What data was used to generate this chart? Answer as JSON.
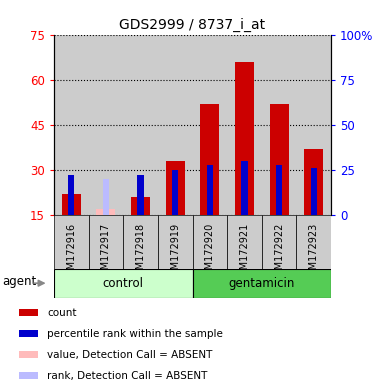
{
  "title": "GDS2999 / 8737_i_at",
  "samples": [
    "GSM172916",
    "GSM172917",
    "GSM172918",
    "GSM172919",
    "GSM172920",
    "GSM172921",
    "GSM172922",
    "GSM172923"
  ],
  "count_values": [
    22,
    0,
    21,
    33,
    52,
    66,
    52,
    37
  ],
  "rank_values": [
    22,
    0,
    22,
    25,
    28,
    30,
    28,
    26
  ],
  "absent_value": [
    0,
    17,
    0,
    0,
    0,
    0,
    0,
    0
  ],
  "absent_rank": [
    0,
    20,
    0,
    0,
    0,
    0,
    0,
    0
  ],
  "is_absent": [
    false,
    true,
    false,
    false,
    false,
    false,
    false,
    false
  ],
  "ylim_left": [
    15,
    75
  ],
  "ylim_right": [
    0,
    100
  ],
  "yticks_left": [
    15,
    30,
    45,
    60,
    75
  ],
  "yticks_right": [
    0,
    25,
    50,
    75,
    100
  ],
  "ytick_labels_left": [
    "15",
    "30",
    "45",
    "60",
    "75"
  ],
  "ytick_labels_right": [
    "0",
    "25",
    "50",
    "75",
    "100%"
  ],
  "color_count": "#cc0000",
  "color_rank": "#0000cc",
  "color_absent_value": "#ffbbbb",
  "color_absent_rank": "#bbbbff",
  "color_control_bg": "#ccffcc",
  "color_gentamicin_bg": "#55cc55",
  "color_sample_bg": "#cccccc",
  "group_label_control": "control",
  "group_label_gentamicin": "gentamicin",
  "agent_label": "agent",
  "legend_labels": [
    "count",
    "percentile rank within the sample",
    "value, Detection Call = ABSENT",
    "rank, Detection Call = ABSENT"
  ],
  "legend_colors": [
    "#cc0000",
    "#0000cc",
    "#ffbbbb",
    "#bbbbff"
  ],
  "bar_width": 0.55,
  "rank_bar_width": 0.18
}
